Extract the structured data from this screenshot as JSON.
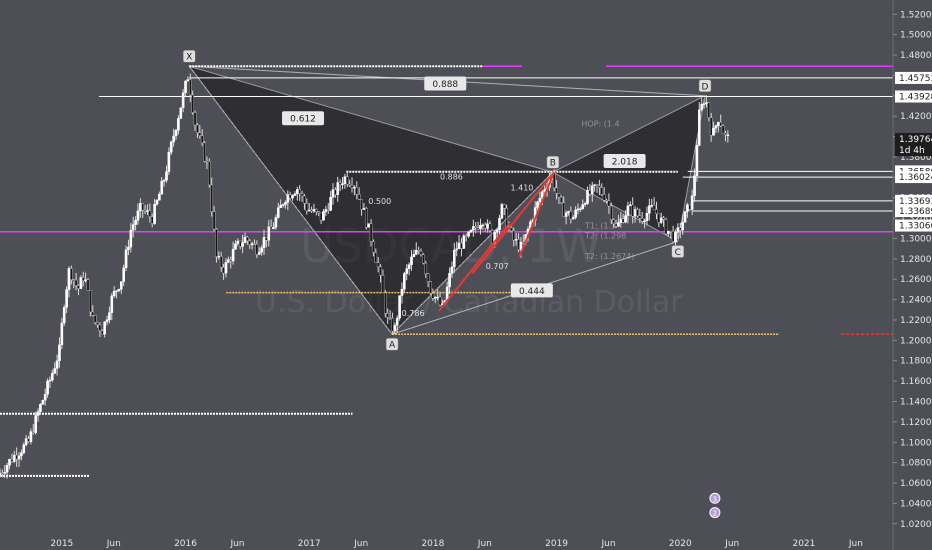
{
  "chart_data": {
    "type": "candlestick",
    "watermark": {
      "symbol": "USDCAD, 1W",
      "name": "U.S. Dollar / Canadian Dollar"
    },
    "y_ticks": [
      "1.52000",
      "1.50000",
      "1.48000",
      "1.46000",
      "1.44000",
      "1.42000",
      "1.40000",
      "1.38000",
      "1.36000",
      "1.34000",
      "1.32000",
      "1.30000",
      "1.28000",
      "1.26000",
      "1.24000",
      "1.22000",
      "1.20000",
      "1.18000",
      "1.16000",
      "1.14000",
      "1.12000",
      "1.10000",
      "1.08000",
      "1.06000",
      "1.04000",
      "1.02000"
    ],
    "ylim": [
      1.008,
      1.534
    ],
    "x_ticks": [
      {
        "label": "2015",
        "t": 2015.0
      },
      {
        "label": "Jun",
        "t": 2015.42
      },
      {
        "label": "2016",
        "t": 2016.0
      },
      {
        "label": "Jun",
        "t": 2016.42
      },
      {
        "label": "2017",
        "t": 2017.0
      },
      {
        "label": "Jun",
        "t": 2017.42
      },
      {
        "label": "2018",
        "t": 2018.0
      },
      {
        "label": "Jun",
        "t": 2018.42
      },
      {
        "label": "2019",
        "t": 2019.0
      },
      {
        "label": "Jun",
        "t": 2019.42
      },
      {
        "label": "2020",
        "t": 2020.0
      },
      {
        "label": "Jun",
        "t": 2020.42
      },
      {
        "label": "2021",
        "t": 2021.0
      },
      {
        "label": "Jun",
        "t": 2021.42
      }
    ],
    "xlim": [
      2014.5,
      2021.72
    ],
    "price_path": [
      [
        2014.5,
        1.067
      ],
      [
        2014.62,
        1.085
      ],
      [
        2014.75,
        1.1
      ],
      [
        2014.83,
        1.13
      ],
      [
        2014.92,
        1.16
      ],
      [
        2015.0,
        1.19
      ],
      [
        2015.04,
        1.24
      ],
      [
        2015.08,
        1.27
      ],
      [
        2015.15,
        1.25
      ],
      [
        2015.2,
        1.265
      ],
      [
        2015.27,
        1.22
      ],
      [
        2015.35,
        1.21
      ],
      [
        2015.42,
        1.24
      ],
      [
        2015.5,
        1.26
      ],
      [
        2015.58,
        1.31
      ],
      [
        2015.66,
        1.33
      ],
      [
        2015.75,
        1.32
      ],
      [
        2015.85,
        1.36
      ],
      [
        2015.92,
        1.4
      ],
      [
        2016.04,
        1.46
      ],
      [
        2016.1,
        1.41
      ],
      [
        2016.2,
        1.37
      ],
      [
        2016.27,
        1.28
      ],
      [
        2016.33,
        1.27
      ],
      [
        2016.42,
        1.29
      ],
      [
        2016.5,
        1.3
      ],
      [
        2016.6,
        1.29
      ],
      [
        2016.72,
        1.31
      ],
      [
        2016.82,
        1.34
      ],
      [
        2016.92,
        1.35
      ],
      [
        2017.0,
        1.33
      ],
      [
        2017.12,
        1.32
      ],
      [
        2017.2,
        1.34
      ],
      [
        2017.3,
        1.36
      ],
      [
        2017.38,
        1.355
      ],
      [
        2017.45,
        1.33
      ],
      [
        2017.52,
        1.3
      ],
      [
        2017.58,
        1.27
      ],
      [
        2017.65,
        1.22
      ],
      [
        2017.71,
        1.21
      ],
      [
        2017.78,
        1.26
      ],
      [
        2017.85,
        1.28
      ],
      [
        2017.92,
        1.29
      ],
      [
        2018.0,
        1.25
      ],
      [
        2018.05,
        1.24
      ],
      [
        2018.1,
        1.23
      ],
      [
        2018.2,
        1.29
      ],
      [
        2018.3,
        1.3
      ],
      [
        2018.42,
        1.32
      ],
      [
        2018.5,
        1.3
      ],
      [
        2018.58,
        1.33
      ],
      [
        2018.66,
        1.3
      ],
      [
        2018.74,
        1.29
      ],
      [
        2018.82,
        1.32
      ],
      [
        2018.92,
        1.35
      ],
      [
        2018.98,
        1.363
      ],
      [
        2019.05,
        1.33
      ],
      [
        2019.15,
        1.32
      ],
      [
        2019.25,
        1.34
      ],
      [
        2019.35,
        1.35
      ],
      [
        2019.42,
        1.34
      ],
      [
        2019.5,
        1.31
      ],
      [
        2019.6,
        1.33
      ],
      [
        2019.7,
        1.32
      ],
      [
        2019.8,
        1.33
      ],
      [
        2019.9,
        1.31
      ],
      [
        2019.98,
        1.3
      ],
      [
        2020.05,
        1.32
      ],
      [
        2020.12,
        1.34
      ],
      [
        2020.17,
        1.42
      ],
      [
        2020.22,
        1.44
      ],
      [
        2020.28,
        1.4
      ],
      [
        2020.33,
        1.42
      ],
      [
        2020.38,
        1.4
      ],
      [
        2020.4,
        1.398
      ]
    ],
    "right_labels": [
      {
        "value": "1.45753",
        "price": 1.45753,
        "bg": "#ffffff",
        "fg": "#222222"
      },
      {
        "value": "1.43928",
        "price": 1.43928,
        "bg": "#ffffff",
        "fg": "#222222"
      },
      {
        "value": "1.39764",
        "price": 1.39764,
        "bg": "#1e1e1e",
        "fg": "#ffffff"
      },
      {
        "value": "1d 4h",
        "price": 1.3866,
        "bg": "#1e1e1e",
        "fg": "#ffffff"
      },
      {
        "value": "1.36580",
        "price": 1.3658,
        "bg": "#ffffff",
        "fg": "#222222"
      },
      {
        "value": "1.36024",
        "price": 1.36024,
        "bg": "#ffffff",
        "fg": "#222222"
      },
      {
        "value": "1.33693",
        "price": 1.33693,
        "bg": "#ffffff",
        "fg": "#222222"
      },
      {
        "value": "1.33689",
        "price": 1.32689,
        "bg": "#ffffff",
        "fg": "#222222"
      },
      {
        "value": "1.33066",
        "price": 1.31266,
        "bg": "#ffffff",
        "fg": "#222222"
      }
    ],
    "pattern_points": [
      {
        "name": "X",
        "t": 2016.03,
        "price": 1.469
      },
      {
        "name": "A",
        "t": 2017.67,
        "price": 1.206
      },
      {
        "name": "B",
        "t": 2018.97,
        "price": 1.365
      },
      {
        "name": "C",
        "t": 2019.98,
        "price": 1.297
      },
      {
        "name": "D",
        "t": 2020.2,
        "price": 1.44
      }
    ],
    "ratio_labels": [
      {
        "text": "0.612",
        "t": 2016.95,
        "price": 1.418,
        "style": "box"
      },
      {
        "text": "0.888",
        "t": 2018.1,
        "price": 1.452,
        "style": "box"
      },
      {
        "text": "2.018",
        "t": 2019.55,
        "price": 1.376,
        "style": "box"
      },
      {
        "text": "0.444",
        "t": 2018.8,
        "price": 1.249,
        "style": "box"
      },
      {
        "text": "0.500",
        "t": 2017.57,
        "price": 1.334,
        "style": "small"
      },
      {
        "text": "0.886",
        "t": 2018.15,
        "price": 1.358,
        "style": "small"
      },
      {
        "text": "1.410",
        "t": 2018.72,
        "price": 1.347,
        "style": "small"
      },
      {
        "text": "0.707",
        "t": 2018.52,
        "price": 1.27,
        "style": "small"
      },
      {
        "text": "0.786",
        "t": 2017.84,
        "price": 1.224,
        "style": "small"
      },
      {
        "text": "HOP: (1.4",
        "t": 2019.2,
        "price": 1.41,
        "style": "faint"
      },
      {
        "text": "T1: (1.3",
        "t": 2019.23,
        "price": 1.31,
        "style": "faint"
      },
      {
        "text": "T2: (1.298",
        "t": 2019.23,
        "price": 1.3,
        "style": "faint"
      },
      {
        "text": "T2: (1.2674)",
        "t": 2019.23,
        "price": 1.28,
        "style": "faint"
      }
    ],
    "events": [
      {
        "text": "3",
        "t": 2020.28,
        "price": 1.045
      },
      {
        "text": "2",
        "t": 2020.28,
        "price": 1.031
      }
    ],
    "colors": {
      "background": "#4e4f56",
      "magenta": "#e040fb",
      "yellow": "#e9c46a",
      "red": "#e53935",
      "candle": "#ffffff",
      "candle_dark": "#151515"
    }
  }
}
